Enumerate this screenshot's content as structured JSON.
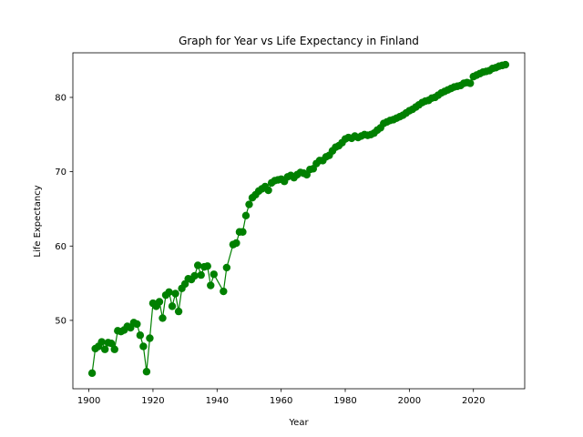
{
  "chart_data": {
    "type": "line",
    "title": "Graph for Year vs Life Expectancy in Finland",
    "xlabel": "Year",
    "ylabel": "Life Expectancy",
    "xlim": [
      1895,
      2036
    ],
    "ylim": [
      40.8,
      86.0
    ],
    "x_ticks": [
      1900,
      1920,
      1940,
      1960,
      1980,
      2000,
      2020
    ],
    "y_ticks": [
      50,
      60,
      70,
      80
    ],
    "grid": false,
    "legend": "none",
    "marker": "circle",
    "color": "#008000",
    "series": [
      {
        "x": [
          1901,
          1902,
          1903,
          1904,
          1905,
          1906,
          1907,
          1908,
          1909,
          1910,
          1911,
          1912,
          1913,
          1914,
          1915,
          1916,
          1917,
          1918,
          1919,
          1920,
          1921,
          1922,
          1923,
          1924,
          1925,
          1926,
          1927,
          1928,
          1929,
          1930,
          1931,
          1932,
          1933,
          1934,
          1935,
          1936,
          1937,
          1938,
          1939,
          1942,
          1943,
          1945,
          1946,
          1947,
          1948,
          1949,
          1950,
          1951,
          1952,
          1953,
          1954,
          1955,
          1956,
          1957,
          1958,
          1959,
          1960,
          1961,
          1962,
          1963,
          1964,
          1965,
          1966,
          1967,
          1968,
          1969,
          1970,
          1971,
          1972,
          1973,
          1974,
          1975,
          1976,
          1977,
          1978,
          1979,
          1980,
          1981,
          1982,
          1983,
          1984,
          1985,
          1986,
          1987,
          1988,
          1989,
          1990,
          1991,
          1992,
          1993,
          1994,
          1995,
          1996,
          1997,
          1998,
          1999,
          2000,
          2001,
          2002,
          2003,
          2004,
          2005,
          2006,
          2007,
          2008,
          2009,
          2010,
          2011,
          2012,
          2013,
          2014,
          2015,
          2016,
          2017,
          2018,
          2019,
          2020,
          2021,
          2022,
          2023,
          2024,
          2025,
          2026,
          2027,
          2028,
          2029,
          2030
        ],
        "values": [
          42.9,
          46.2,
          46.5,
          47.1,
          46.1,
          47.0,
          46.9,
          46.1,
          48.6,
          48.5,
          48.7,
          49.2,
          49.0,
          49.7,
          49.5,
          48.0,
          46.5,
          43.1,
          47.6,
          52.3,
          51.9,
          52.5,
          50.3,
          53.4,
          53.8,
          51.9,
          53.6,
          51.2,
          54.3,
          54.9,
          55.6,
          55.5,
          56.0,
          57.4,
          56.1,
          57.2,
          57.3,
          54.7,
          56.2,
          53.9,
          57.1,
          60.2,
          60.4,
          61.9,
          61.9,
          64.1,
          65.6,
          66.5,
          66.9,
          67.4,
          67.7,
          68.0,
          67.5,
          68.5,
          68.8,
          68.9,
          69.0,
          68.7,
          69.3,
          69.5,
          69.2,
          69.6,
          69.9,
          69.8,
          69.6,
          70.3,
          70.4,
          71.1,
          71.5,
          71.5,
          72.0,
          72.2,
          72.8,
          73.3,
          73.5,
          73.9,
          74.4,
          74.6,
          74.5,
          74.8,
          74.6,
          74.8,
          75.0,
          74.9,
          75.0,
          75.2,
          75.6,
          75.9,
          76.5,
          76.7,
          76.9,
          77.0,
          77.2,
          77.4,
          77.6,
          77.9,
          78.2,
          78.4,
          78.7,
          79.0,
          79.3,
          79.5,
          79.6,
          79.9,
          80.0,
          80.3,
          80.6,
          80.8,
          81.0,
          81.2,
          81.4,
          81.5,
          81.6,
          81.9,
          82.0,
          81.9,
          82.8,
          83.0,
          83.2,
          83.4,
          83.5,
          83.6,
          83.9,
          84.0,
          84.2,
          84.3,
          84.4
        ]
      }
    ]
  }
}
